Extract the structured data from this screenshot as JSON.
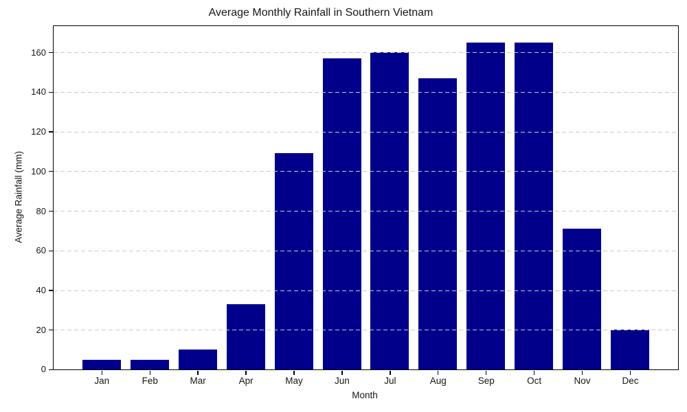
{
  "figure": {
    "background": "#ffffff"
  },
  "chart_data": {
    "type": "bar",
    "title": "Average Monthly Rainfall in Southern Vietnam",
    "xlabel": "Month",
    "ylabel": "Average Rainfall (mm)",
    "categories": [
      "Jan",
      "Feb",
      "Mar",
      "Apr",
      "May",
      "Jun",
      "Jul",
      "Aug",
      "Sep",
      "Oct",
      "Nov",
      "Dec"
    ],
    "values": [
      5,
      5,
      10,
      33,
      109,
      157,
      160,
      147,
      165,
      165,
      71,
      20
    ],
    "yticks": [
      0,
      20,
      40,
      60,
      80,
      100,
      120,
      140,
      160
    ],
    "ylim": [
      0,
      173.25
    ],
    "bar_color": "#00008B",
    "bar_width_fraction": 0.8,
    "grid": true,
    "grid_axis": "y",
    "grid_style": "dashed",
    "grid_color": "#cacaca",
    "grid_above_bars": true,
    "axis_color": "#000000",
    "text_color": "#151515",
    "legend": null
  }
}
